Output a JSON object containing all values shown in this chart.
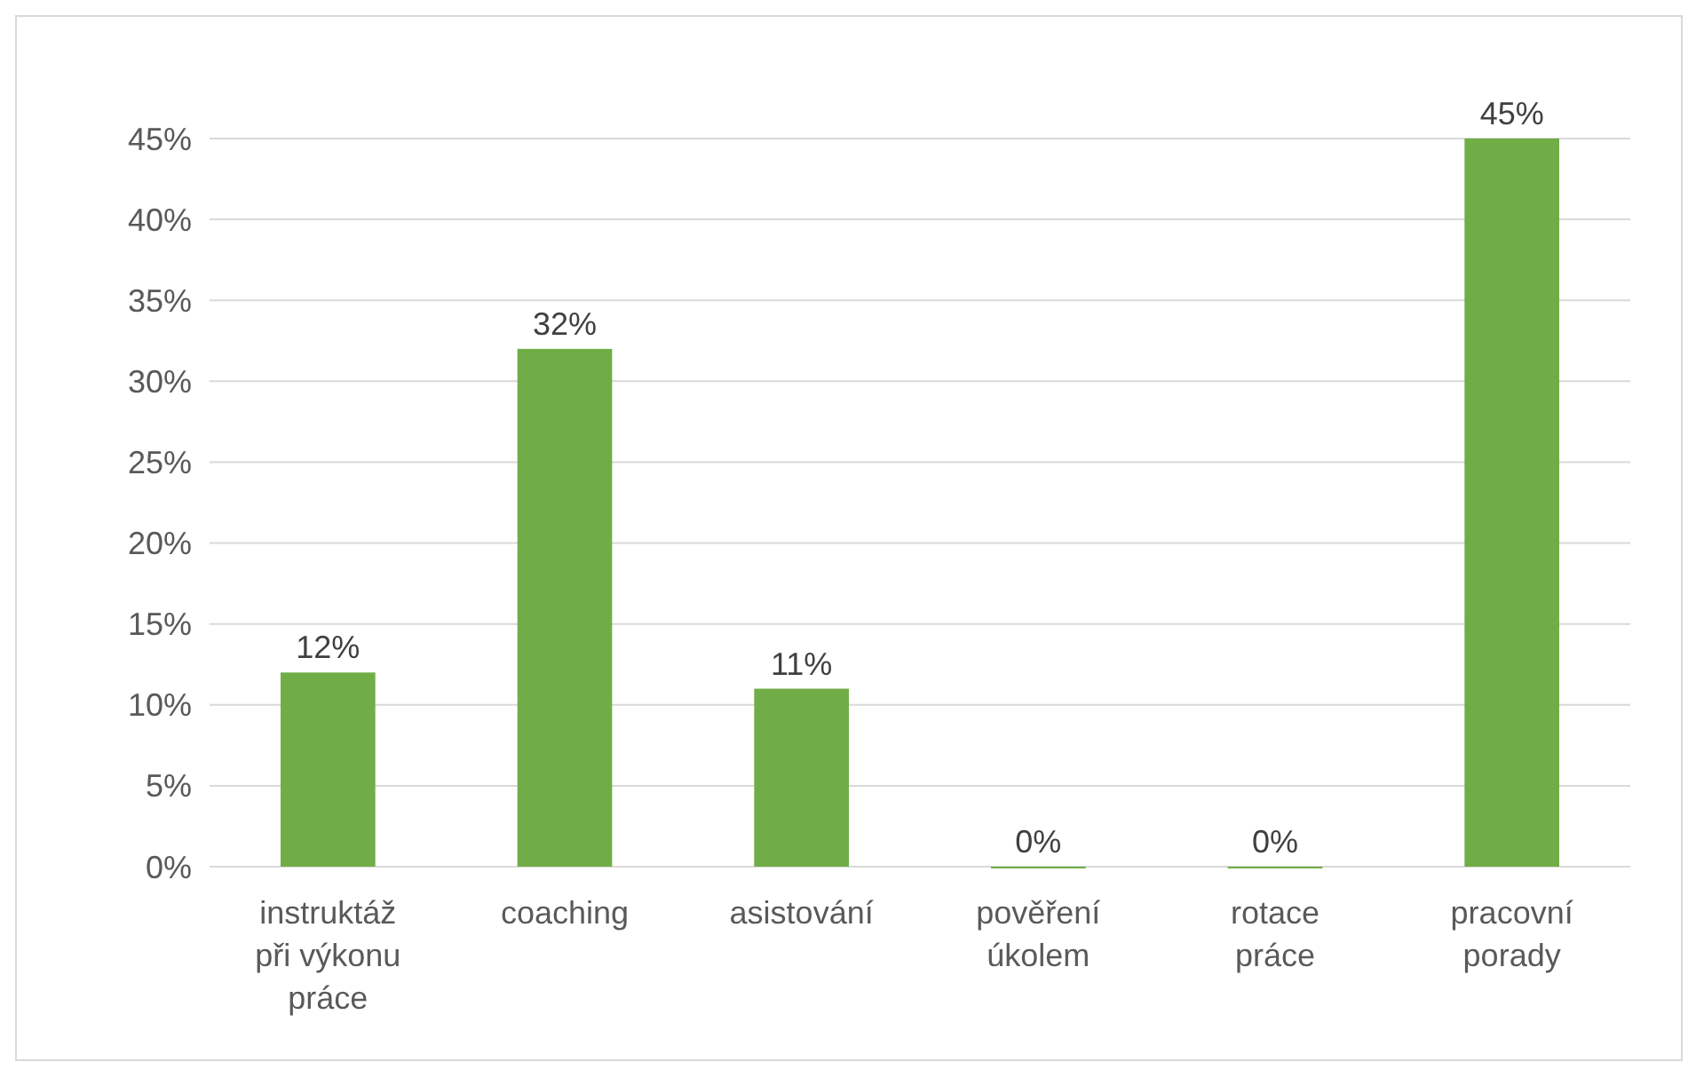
{
  "chart_data": {
    "type": "bar",
    "categories": [
      "instruktáž při výkonu práce",
      "coaching",
      "asistování",
      "pověření úkolem",
      "rotace práce",
      "pracovní porady"
    ],
    "values": [
      12,
      32,
      11,
      0,
      0,
      45
    ],
    "value_labels": [
      "12%",
      "32%",
      "11%",
      "0%",
      "0%",
      "45%"
    ],
    "color": "#70ad47",
    "ylim": [
      0,
      45
    ],
    "yticks": [
      {
        "value": 0,
        "label": "0%"
      },
      {
        "value": 5,
        "label": "5%"
      },
      {
        "value": 10,
        "label": "10%"
      },
      {
        "value": 15,
        "label": "15%"
      },
      {
        "value": 20,
        "label": "20%"
      },
      {
        "value": 25,
        "label": "25%"
      },
      {
        "value": 30,
        "label": "30%"
      },
      {
        "value": 35,
        "label": "35%"
      },
      {
        "value": 40,
        "label": "40%"
      },
      {
        "value": 45,
        "label": "45%"
      }
    ],
    "grid": "y"
  }
}
